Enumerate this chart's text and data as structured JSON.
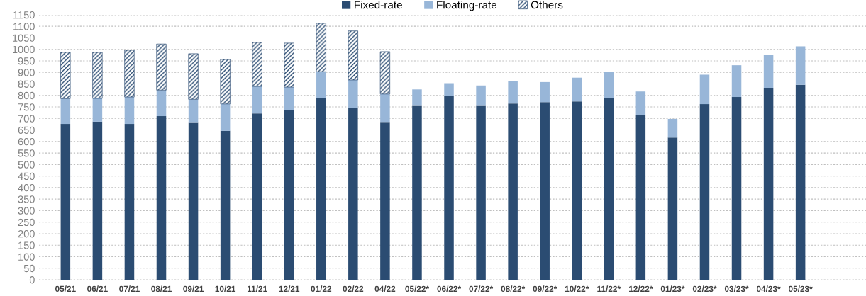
{
  "chart_data": {
    "type": "bar",
    "stacked": true,
    "categories": [
      "05/21",
      "06/21",
      "07/21",
      "08/21",
      "09/21",
      "10/21",
      "11/21",
      "12/21",
      "01/22",
      "02/22",
      "04/22",
      "05/22*",
      "06/22*",
      "07/22*",
      "08/22*",
      "09/22*",
      "10/22*",
      "11/22*",
      "12/22*",
      "01/23*",
      "02/23*",
      "03/23*",
      "04/23*",
      "05/23*"
    ],
    "series": [
      {
        "name": "Fixed-rate",
        "color": "#2b4c72",
        "values": [
          676,
          686,
          676,
          710,
          684,
          646,
          722,
          735,
          788,
          747,
          685,
          758,
          799,
          758,
          765,
          771,
          774,
          787,
          716,
          617,
          762,
          793,
          833,
          846
        ]
      },
      {
        "name": "Floating-rate",
        "color": "#98b6d8",
        "values": [
          110,
          101,
          117,
          113,
          99,
          117,
          117,
          101,
          115,
          120,
          121,
          68,
          54,
          85,
          96,
          87,
          103,
          114,
          101,
          81,
          128,
          138,
          144,
          167
        ]
      },
      {
        "name": "Others",
        "color": "#2b4c72",
        "values": [
          201,
          200,
          203,
          200,
          198,
          193,
          191,
          191,
          210,
          213,
          184,
          null,
          null,
          null,
          null,
          null,
          null,
          null,
          null,
          null,
          null,
          null,
          null,
          null
        ]
      }
    ],
    "ylim": [
      0,
      1150
    ],
    "yticks": [
      0,
      50,
      100,
      150,
      200,
      250,
      300,
      350,
      400,
      450,
      500,
      550,
      600,
      650,
      700,
      750,
      800,
      850,
      900,
      950,
      1000,
      1050,
      1100,
      1150
    ],
    "grid": "y",
    "legend": "top"
  }
}
